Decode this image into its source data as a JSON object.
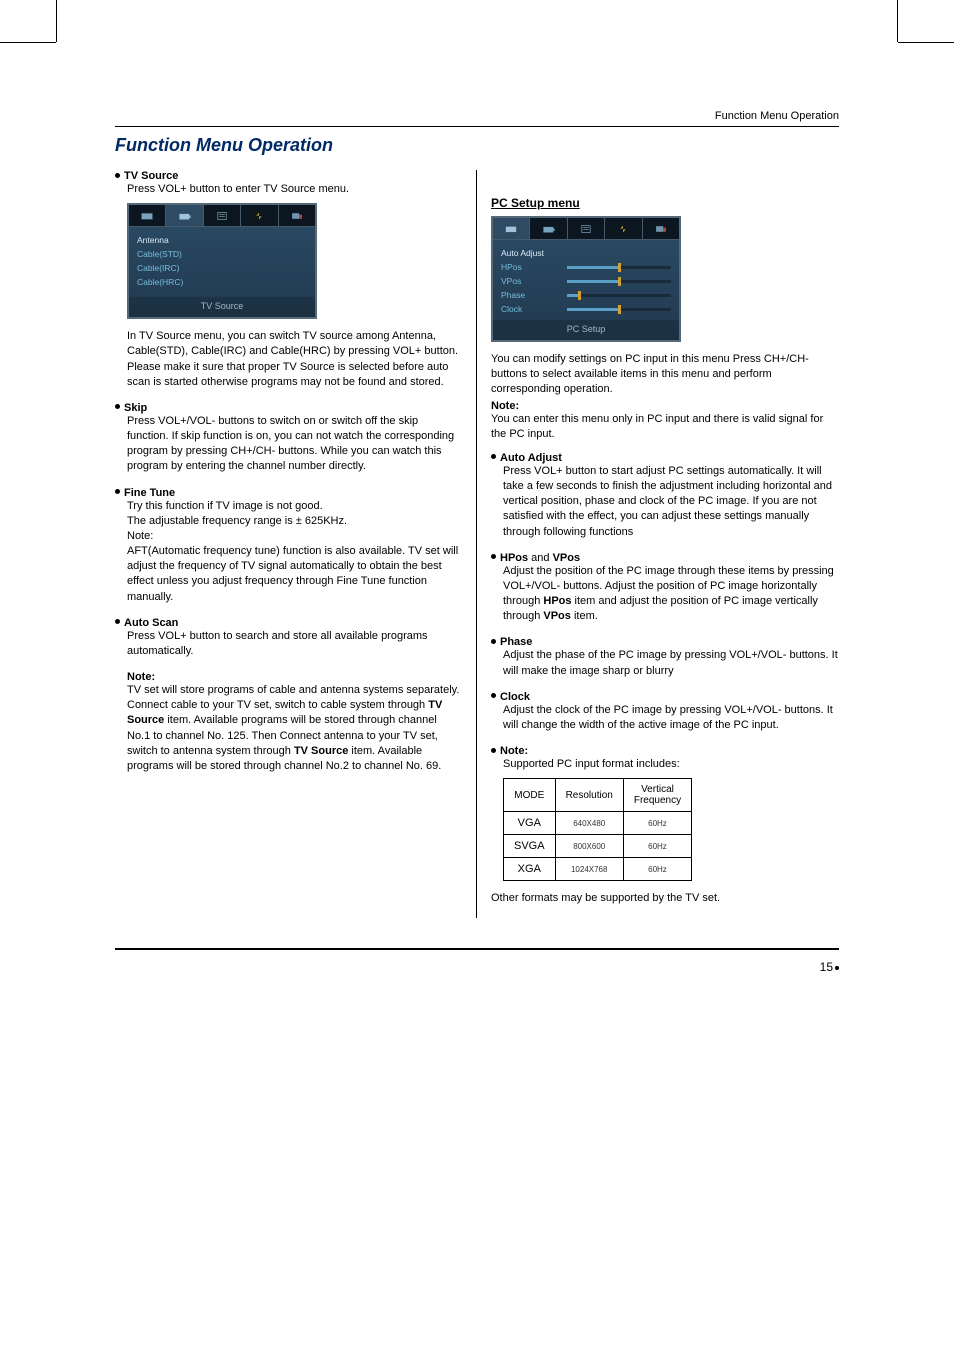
{
  "runningHead": "Function Menu Operation",
  "docTitle": "Function Menu Operation",
  "pageNumber": "15",
  "left": {
    "tvSource": {
      "head": "TV Source",
      "intro": "Press VOL+ button to enter TV Source menu.",
      "osd": {
        "items": [
          "Antenna",
          "Cable(STD)",
          "Cable(IRC)",
          "Cable(HRC)"
        ],
        "footer": "TV  Source"
      },
      "body": "In TV Source menu, you can switch TV source among Antenna, Cable(STD), Cable(IRC) and Cable(HRC) by pressing VOL+ button.\nPlease make it sure that proper TV Source is selected before auto scan is started otherwise programs may not be found and stored."
    },
    "skip": {
      "head": "Skip",
      "body": "Press VOL+/VOL- buttons to switch on or switch off the skip function. If skip function is on, you can not watch the corresponding program by pressing CH+/CH- buttons. While you can watch this program by entering the channel number directly."
    },
    "fineTune": {
      "head": "Fine Tune",
      "body": "Try this function if TV image is not good.\nThe adjustable frequency range is ± 625KHz.\nNote:\nAFT(Automatic frequency tune) function is also available. TV set will adjust the frequency of TV signal automatically to obtain the best effect unless you adjust frequency through Fine Tune function manually."
    },
    "autoScan": {
      "head": "Auto Scan",
      "body": "Press VOL+ button to search and store all available programs automatically."
    },
    "note": {
      "label": "Note:",
      "body": "TV set will store programs of cable and antenna systems separately. Connect cable to your TV set, switch to cable system through TV Source item. Available programs will be stored through channel No.1 to channel No. 125. Then Connect antenna to your TV set, switch to antenna system through TV Source item. Available programs will be stored through channel No.2 to channel No. 69."
    }
  },
  "right": {
    "heading": "PC Setup menu",
    "osd": {
      "items": [
        {
          "label": "Auto  Adjust",
          "slider": false
        },
        {
          "label": "HPos",
          "slider": true,
          "fill": 50
        },
        {
          "label": "VPos",
          "slider": true,
          "fill": 50
        },
        {
          "label": "Phase",
          "slider": true,
          "fill": 12
        },
        {
          "label": "Clock",
          "slider": true,
          "fill": 50
        }
      ],
      "footer": "PC  Setup"
    },
    "intro": "You can modify settings on PC input in this menu Press CH+/CH- buttons to select available items in this menu and perform corresponding operation.",
    "introNoteLabel": "Note:",
    "introNote": "You can enter this menu only in PC input and there is valid signal for the PC input.",
    "autoAdjust": {
      "head": "Auto Adjust",
      "body": "Press VOL+ button to start adjust PC settings automatically. It will take a few seconds to finish the adjustment including horizontal and vertical position, phase and clock of the PC image. If you are not satisfied with the effect, you can adjust these settings manually through following functions"
    },
    "hpos": {
      "head": "HPos",
      "and": " and ",
      "head2": "VPos",
      "body": "Adjust the position of the PC image through these items by pressing VOL+/VOL- buttons. Adjust the position of PC image horizontally through HPos item and adjust the position of PC image vertically through VPos item."
    },
    "phase": {
      "head": "Phase",
      "body": "Adjust the phase of the PC image by pressing VOL+/VOL- buttons. It will make the image sharp or blurry"
    },
    "clock": {
      "head": "Clock",
      "body": "Adjust the clock of the PC image by pressing VOL+/VOL- buttons. It will change the width of the active image of the PC input."
    },
    "pcNote": {
      "head": "Note:",
      "body": "Supported PC input format includes:"
    },
    "table": {
      "headers": [
        "MODE",
        "Resolution",
        "Vertical\nFrequency"
      ],
      "rows": [
        [
          "VGA",
          "640X480",
          "60Hz"
        ],
        [
          "SVGA",
          "800X600",
          "60Hz"
        ],
        [
          "XGA",
          "1024X768",
          "60Hz"
        ]
      ]
    },
    "otherFormats": "Other formats may be supported by the TV set."
  }
}
